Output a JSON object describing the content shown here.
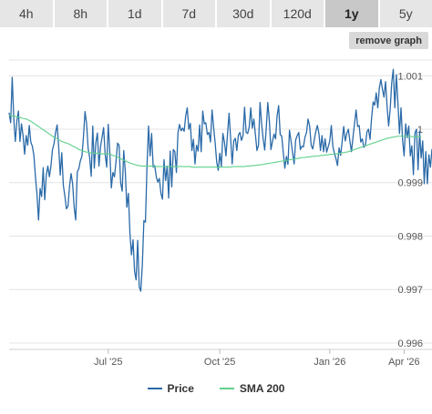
{
  "tabs": [
    {
      "label": "4h"
    },
    {
      "label": "8h"
    },
    {
      "label": "1d"
    },
    {
      "label": "7d"
    },
    {
      "label": "30d"
    },
    {
      "label": "120d"
    },
    {
      "label": "1y",
      "active": true
    },
    {
      "label": "5y"
    }
  ],
  "remove_graph_label": "remove graph",
  "colors": {
    "price": "#2a6aa8",
    "sma": "#5fd08a",
    "grid": "#e4e4e4"
  },
  "legend": {
    "price": "Price",
    "sma": "SMA 200"
  },
  "chart_data": {
    "type": "line",
    "x_ticks": [
      "Jul '25",
      "Oct '25",
      "Jan '26",
      "Apr '26"
    ],
    "y_ticks": [
      "0.996",
      "0.997",
      "0.998",
      "0.999",
      "1",
      "1.001"
    ],
    "y_tick_values": [
      0.996,
      0.997,
      0.998,
      0.999,
      1.0,
      1.001
    ],
    "ylim": [
      0.99588,
      1.00143
    ],
    "grid": "horizontal",
    "legend_position": "bottom",
    "x_tick_index": [
      64,
      136,
      207,
      255
    ],
    "series": [
      {
        "name": "Price",
        "values": [
          1.00031,
          1.00012,
          1.00097,
          1.00021,
          0.99977,
          1.00015,
          1.00034,
          0.99977,
          1.0001,
          0.99988,
          0.99953,
          0.99988,
          0.9997,
          1.00007,
          0.99976,
          0.99968,
          0.99951,
          0.99911,
          0.99878,
          0.9983,
          0.99889,
          0.99874,
          0.99928,
          0.99868,
          0.99914,
          0.99931,
          0.99911,
          0.99931,
          0.99962,
          0.99973,
          0.99994,
          1.00008,
          0.99967,
          0.99914,
          0.99956,
          0.99895,
          0.99875,
          0.99851,
          0.99856,
          0.99893,
          0.99917,
          0.99898,
          0.99854,
          0.9983,
          0.9992,
          0.99926,
          0.99941,
          0.99949,
          0.99986,
          1.00033,
          1.00011,
          0.99964,
          0.99947,
          0.99912,
          1.00006,
          0.99927,
          0.99975,
          0.99993,
          0.99931,
          0.99967,
          0.99985,
          1.00003,
          0.99953,
          0.99929,
          1.00009,
          0.99957,
          0.9989,
          0.99919,
          0.99911,
          0.99939,
          0.99974,
          0.9997,
          0.999,
          0.99884,
          0.9996,
          0.99921,
          0.99854,
          0.9988,
          0.99805,
          0.99765,
          0.99793,
          0.99734,
          0.99718,
          0.99792,
          0.99705,
          0.99697,
          0.99746,
          0.99829,
          0.99826,
          0.99929,
          1.00006,
          0.9995,
          0.99992,
          0.99929,
          0.99932,
          0.99911,
          0.99901,
          0.99908,
          0.9988,
          0.99869,
          0.99943,
          0.99904,
          0.99931,
          0.99871,
          0.99959,
          0.99892,
          0.99962,
          0.99958,
          0.99919,
          0.99993,
          1.00009,
          0.99997,
          1.00002,
          0.99996,
          1.00025,
          1.0004,
          1.0,
          1.00011,
          0.9996,
          0.99981,
          0.99935,
          0.9997,
          0.99959,
          1.00008,
          0.99958,
          1.00034,
          1.0001,
          1.00012,
          0.9999,
          0.99994,
          0.99976,
          1.00036,
          1.00004,
          0.99975,
          0.99939,
          0.99923,
          0.99955,
          0.9993,
          0.99992,
          0.99976,
          0.9995,
          0.99991,
          1.0003,
          0.99983,
          0.99935,
          0.99978,
          0.99983,
          0.9996,
          0.99989,
          0.99994,
          0.99979,
          0.99988,
          1.00041,
          0.99994,
          0.99992,
          1.00004,
          1.0004,
          1.00002,
          1.00019,
          0.9999,
          0.9996,
          0.9997,
          1.0005,
          1.0001,
          0.99982,
          0.99961,
          1.00002,
          1.0005,
          1.00016,
          0.99962,
          0.99977,
          0.99991,
          0.99982,
          1.00025,
          1.00044,
          0.9999,
          0.99987,
          0.99956,
          0.99927,
          0.99949,
          0.99934,
          0.99998,
          0.99978,
          0.99956,
          0.99935,
          0.9998,
          0.99988,
          0.99994,
          0.99962,
          0.99968,
          0.99967,
          0.99985,
          0.99994,
          1.00019,
          1.00006,
          0.9997,
          0.99963,
          0.9998,
          0.99996,
          1.00007,
          0.99992,
          0.9996,
          0.99988,
          0.99958,
          0.99982,
          0.99957,
          0.99967,
          0.99978,
          1.00007,
          0.99968,
          0.99955,
          0.99945,
          0.99932,
          0.99965,
          0.99951,
          0.99977,
          1.00005,
          0.99978,
          0.99992,
          1.0,
          0.99978,
          0.99958,
          0.99985,
          1.00011,
          1.00036,
          1.00005,
          1.00007,
          0.99976,
          0.99982,
          0.99966,
          0.9997,
          0.99995,
          1.0,
          0.99981,
          1.00021,
          1.00051,
          1.00045,
          1.00068,
          1.0004,
          1.00077,
          1.00093,
          1.00075,
          1.0006,
          1.00089,
          1.00043,
          1.00006,
          1.00037,
          1.00087,
          1.00112,
          1.0004,
          1.00102,
          1.00049,
          0.99992,
          1.0004,
          0.9998,
          0.9995,
          1.0001,
          0.99984,
          1.00006,
          0.9995,
          0.99969,
          0.99915,
          0.99993,
          1.0,
          0.99924,
          0.99996,
          0.99946,
          0.99978,
          0.99898,
          0.99958,
          0.99898,
          0.99952,
          0.99929,
          0.99963
        ]
      },
      {
        "name": "SMA 200",
        "values": [
          1.00026,
          1.00026,
          1.00025,
          1.00025,
          1.00024,
          1.00023,
          1.00023,
          1.00022,
          1.00021,
          1.0002,
          1.0002,
          1.00019,
          1.00018,
          1.00016,
          1.00015,
          1.00013,
          1.00011,
          1.00009,
          1.00007,
          1.00005,
          1.00003,
          1.00001,
          0.99999,
          0.99997,
          0.99995,
          0.99993,
          0.99991,
          0.99989,
          0.99987,
          0.99985,
          0.99984,
          0.99982,
          0.9998,
          0.99979,
          0.99977,
          0.99976,
          0.99975,
          0.99974,
          0.99973,
          0.99972,
          0.9997,
          0.99969,
          0.99967,
          0.99966,
          0.99964,
          0.99962,
          0.99961,
          0.9996,
          0.99959,
          0.99958,
          0.99957,
          0.99957,
          0.99956,
          0.99956,
          0.99956,
          0.99955,
          0.99955,
          0.99955,
          0.99955,
          0.99954,
          0.99954,
          0.99954,
          0.99954,
          0.99954,
          0.99954,
          0.99953,
          0.99952,
          0.99951,
          0.9995,
          0.99949,
          0.99948,
          0.99946,
          0.99945,
          0.99943,
          0.99942,
          0.99941,
          0.99939,
          0.99938,
          0.99937,
          0.99936,
          0.99935,
          0.99934,
          0.99933,
          0.99932,
          0.99932,
          0.99931,
          0.99931,
          0.99931,
          0.99931,
          0.99931,
          0.99931,
          0.99931,
          0.99931,
          0.99931,
          0.9993,
          0.9993,
          0.9993,
          0.9993,
          0.9993,
          0.9993,
          0.9993,
          0.9993,
          0.9993,
          0.9993,
          0.9993,
          0.9993,
          0.9993,
          0.9993,
          0.9993,
          0.9993,
          0.9993,
          0.9993,
          0.9993,
          0.9993,
          0.9993,
          0.9993,
          0.9993,
          0.9993,
          0.99929,
          0.99929,
          0.99929,
          0.99929,
          0.99929,
          0.99929,
          0.99929,
          0.99929,
          0.99929,
          0.99929,
          0.99929,
          0.99929,
          0.99929,
          0.99929,
          0.99929,
          0.99929,
          0.99929,
          0.99929,
          0.99929,
          0.99929,
          0.99929,
          0.99929,
          0.99929,
          0.99929,
          0.99929,
          0.99929,
          0.9993,
          0.9993,
          0.9993,
          0.9993,
          0.9993,
          0.9993,
          0.9993,
          0.9993,
          0.9993,
          0.99931,
          0.99931,
          0.99931,
          0.99931,
          0.99932,
          0.99932,
          0.99932,
          0.99933,
          0.99933,
          0.99933,
          0.99934,
          0.99934,
          0.99935,
          0.99935,
          0.99936,
          0.99936,
          0.99937,
          0.99937,
          0.99938,
          0.99938,
          0.99939,
          0.99939,
          0.9994,
          0.9994,
          0.99941,
          0.99941,
          0.99942,
          0.99942,
          0.99943,
          0.99943,
          0.99944,
          0.99944,
          0.99945,
          0.99945,
          0.99946,
          0.99946,
          0.99947,
          0.99947,
          0.99947,
          0.99948,
          0.99948,
          0.99948,
          0.99949,
          0.99949,
          0.99949,
          0.9995,
          0.9995,
          0.9995,
          0.99951,
          0.99951,
          0.99951,
          0.99952,
          0.99952,
          0.99952,
          0.99953,
          0.99953,
          0.99953,
          0.99954,
          0.99954,
          0.99954,
          0.99955,
          0.99955,
          0.99956,
          0.99956,
          0.99957,
          0.99957,
          0.99958,
          0.99959,
          0.9996,
          0.99961,
          0.99962,
          0.99963,
          0.99964,
          0.99965,
          0.99966,
          0.99967,
          0.99968,
          0.99969,
          0.9997,
          0.99971,
          0.99972,
          0.99973,
          0.99974,
          0.99975,
          0.99976,
          0.99977,
          0.99978,
          0.99979,
          0.9998,
          0.99981,
          0.99982,
          0.99983,
          0.99983,
          0.99984,
          0.99985,
          0.99985,
          0.99986,
          0.99986,
          0.99987,
          0.99987,
          0.99987,
          0.99987,
          0.99987,
          0.99987,
          0.99987,
          0.99987,
          0.99987,
          0.99986,
          0.99986,
          0.99986,
          0.99986,
          0.99986,
          0.99986,
          0.99986
        ]
      }
    ]
  }
}
